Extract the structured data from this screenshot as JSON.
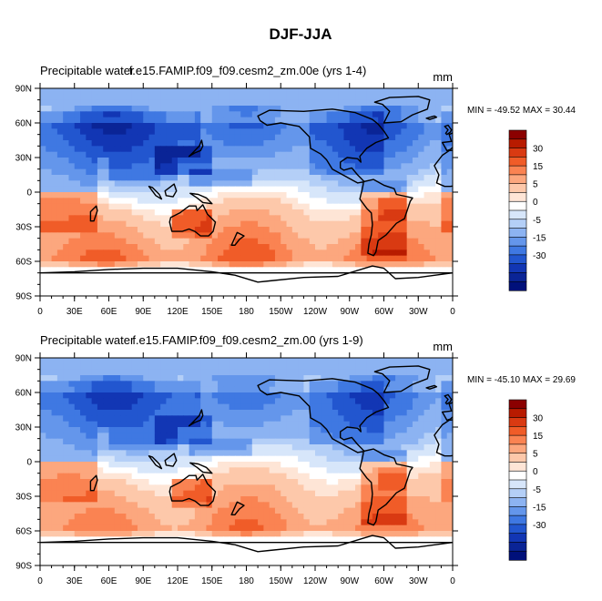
{
  "chart_data": {
    "type": "heatmap",
    "title": "DJF-JJA",
    "xticks": [
      "0",
      "30E",
      "60E",
      "90E",
      "120E",
      "150E",
      "180",
      "150W",
      "120W",
      "90W",
      "60W",
      "30W",
      "0"
    ],
    "yticks": [
      "90N",
      "60N",
      "30N",
      "0",
      "30S",
      "60S",
      "90S"
    ],
    "xlim": [
      0,
      360
    ],
    "ylim": [
      -90,
      90
    ],
    "colorbar": {
      "levels": [
        -35,
        -30,
        -25,
        -20,
        -15,
        -10,
        -5,
        -2.5,
        0,
        2.5,
        5,
        10,
        15,
        20,
        25,
        30,
        35
      ],
      "tick_labels": [
        "30",
        "15",
        "5",
        "0",
        "-5",
        "-15",
        "-30"
      ],
      "colors": [
        "#8b0000",
        "#b81b00",
        "#d93a12",
        "#f05c28",
        "#fa8352",
        "#fca77e",
        "#fdc8aa",
        "#fee5d6",
        "#ffffff",
        "#d7e6fa",
        "#b4cff7",
        "#8cb3f2",
        "#6496eb",
        "#3f78e2",
        "#2256cf",
        "#1236b4",
        "#0a2496",
        "#00107a"
      ]
    },
    "panels": [
      {
        "left_title": "Precipitable water",
        "center_title": "f.e15.FAMIP.f09_f09.cesm2_zm.00e (yrs 1-4)",
        "units": "mm",
        "stats": "MIN = -49.52 MAX =  30.44",
        "min": -49.52,
        "max": 30.44
      },
      {
        "left_title": "Precipitable water",
        "center_title": "f.e15.FAMIP.f09_f09.cesm2_zm.00 (yrs 1-9)",
        "units": "mm",
        "stats": "MIN = -45.10 MAX =  29.69",
        "min": -45.1,
        "max": 29.69
      }
    ]
  }
}
